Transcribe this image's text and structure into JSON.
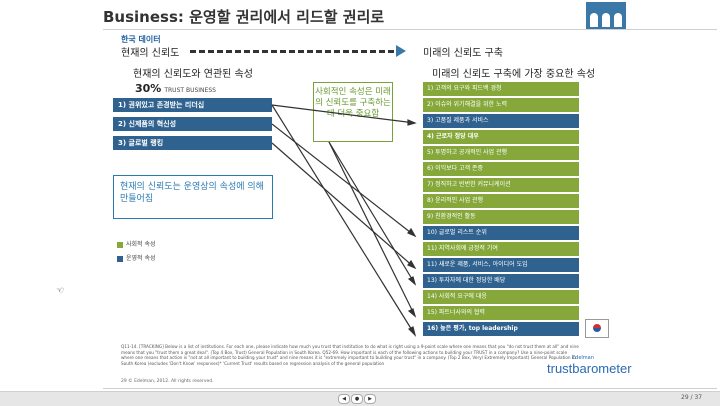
{
  "title": {
    "prefix": "Business:",
    "text": "운영할 권리에서 리드할 권리로"
  },
  "data_label": "한국 데이터",
  "current_trust": "현재의 신뢰도",
  "future_trust": "미래의 신뢰도 구축",
  "current_sub": "현재의 신뢰도와 연관된 속성",
  "future_sub": "미래의 신뢰도 구축에 가장 중요한 속성",
  "percent": "30%",
  "percent_label": "TRUST BUSINESS",
  "left_items": [
    "1) 권위있고 존경받는 리더십",
    "2) 신제품의 혁신성",
    "3) 글로벌 랭킹"
  ],
  "note_left": "현재의 신뢰도는 운영상의 속성에 의해 만들어짐",
  "note_center": "사회적인 속성은 미래의 신뢰도를 구축하는데 더욱 중요함",
  "right_items": [
    {
      "label": "1)  고객의 요구와 피드백 경청",
      "style": "green"
    },
    {
      "label": "2)  이슈와 위기해결을 위한 노력",
      "style": "green"
    },
    {
      "label": "3)  고품질 제품과 서비스",
      "style": "blue"
    },
    {
      "label": "4)  근로자 정당 대우",
      "style": "green-bold"
    },
    {
      "label": "5)  투명하고 공개적인 사업 관행",
      "style": "green"
    },
    {
      "label": "6)  이익보다 고객 존중",
      "style": "green"
    },
    {
      "label": "7)  정직하고 빈번한 커뮤니케이션",
      "style": "green"
    },
    {
      "label": "8)  윤리적인 사업 관행",
      "style": "green"
    },
    {
      "label": "9)  친환경적인 활동",
      "style": "green"
    },
    {
      "label": "10)  글로벌 리스트 순위",
      "style": "blue"
    },
    {
      "label": "11)  지역사회에 긍정적 기여",
      "style": "green"
    },
    {
      "label": "11)  새로운 제품, 서비스, 아이디어 도입",
      "style": "blue"
    },
    {
      "label": "13)  투자자에 대한 정당한 배당",
      "style": "blue"
    },
    {
      "label": "14)  사회적 요구에 대응",
      "style": "green"
    },
    {
      "label": "15)  파트너사와의 협력",
      "style": "green"
    },
    {
      "label": "16)  높은 평가, top leadership",
      "style": "blue-bold"
    }
  ],
  "legend": {
    "social": "사회적 속성",
    "operational": "운영적 속성"
  },
  "colors": {
    "green": "#86a83a",
    "blue": "#30628f"
  },
  "footnote": "Q11-14. [TRACKING] Below is a list of institutions. For each one, please indicate how much you trust that institution to do what is right using a 9-point scale where one means that you \"do not trust them at all\" and nine means that you \"trust them a great deal\". (Top 4 Box, Trust) General Population in South Korea. Q52-69. How important is each of the following actions to building your TRUST in a company? Use a nine-point scale where one means that action is \"not at all important to building your trust\" and nine means it is \"extremely important to building your trust\" in a company. (Top 2 Box, Very/ Extremely Important) General Population in South Korea (excludes 'Don't Know' responses)* 'Current Trust' results based on regression analysis of the general population",
  "copyright": "29    © Edelman, 2012. All rights reserved.",
  "brand_small": "Edelman",
  "brand": "trustbarometer",
  "page_num": "29 / 37"
}
